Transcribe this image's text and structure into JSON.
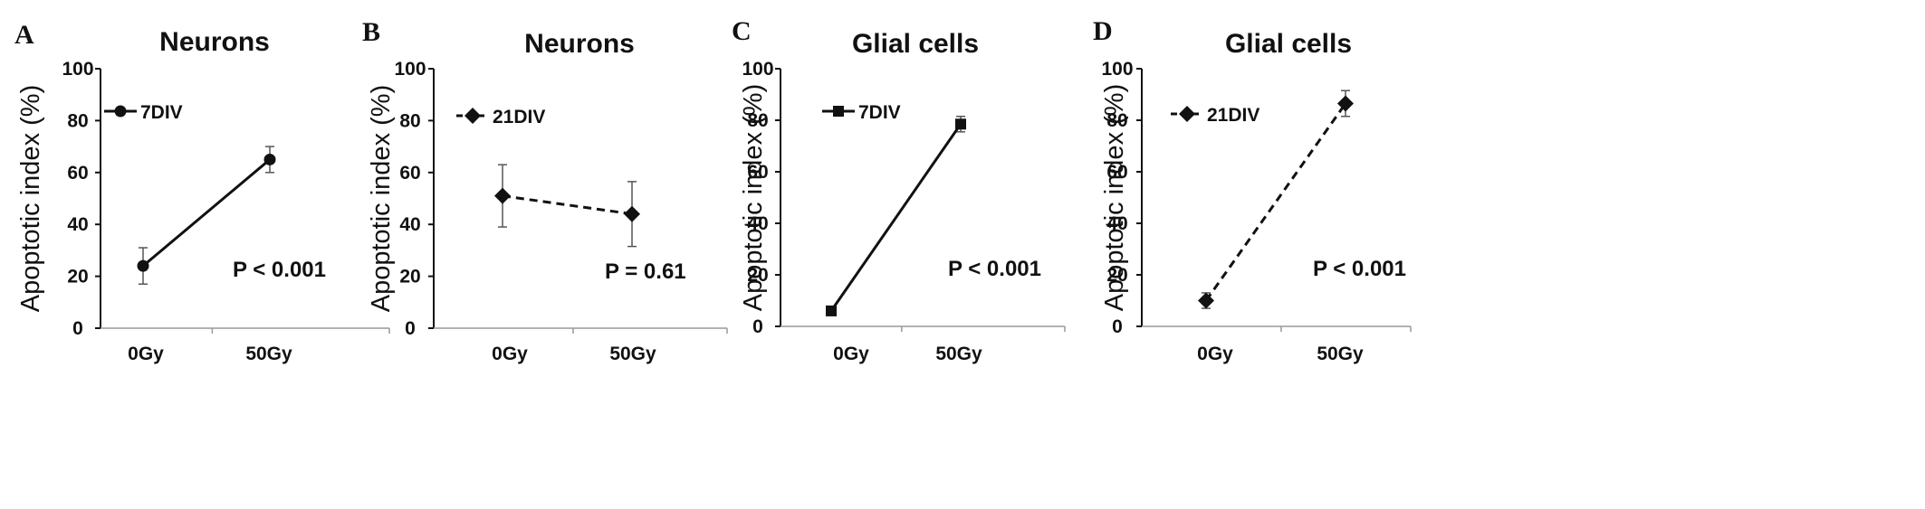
{
  "chart_data": [
    {
      "type": "line",
      "panel": "A",
      "title": "Neurons",
      "ylabel": "Apoptotic index (%)",
      "xlabel": "",
      "categories": [
        "0Gy",
        "50Gy"
      ],
      "ylim": [
        0,
        100
      ],
      "yticks": [
        "0",
        "20",
        "40",
        "60",
        "80",
        "100"
      ],
      "series": [
        {
          "name": "7DIV",
          "values": [
            24,
            65
          ],
          "errors": [
            7,
            5
          ],
          "marker": "circle",
          "dash": "solid"
        }
      ],
      "annotation": "P < 0.001",
      "legend_position": "top-left",
      "grid": false
    },
    {
      "type": "line",
      "panel": "B",
      "title": "Neurons",
      "ylabel": "Apoptotic index (%)",
      "xlabel": "",
      "categories": [
        "0Gy",
        "50Gy"
      ],
      "ylim": [
        0,
        100
      ],
      "yticks": [
        "0",
        "20",
        "40",
        "60",
        "80",
        "100"
      ],
      "series": [
        {
          "name": "21DIV",
          "values": [
            51,
            44
          ],
          "errors": [
            12,
            12.5
          ],
          "marker": "diamond",
          "dash": "dashed"
        }
      ],
      "annotation": "P = 0.61",
      "legend_position": "top-left",
      "grid": false
    },
    {
      "type": "line",
      "panel": "C",
      "title": "Glial cells",
      "ylabel": "Apoptotic index (%)",
      "xlabel": "",
      "categories": [
        "0Gy",
        "50Gy"
      ],
      "ylim": [
        0,
        100
      ],
      "yticks": [
        "0",
        "20",
        "40",
        "60",
        "80",
        "100"
      ],
      "series": [
        {
          "name": "7DIV",
          "values": [
            6,
            78.5
          ],
          "errors": [
            1,
            3
          ],
          "marker": "square",
          "dash": "solid"
        }
      ],
      "annotation": "P < 0.001",
      "legend_position": "top-left",
      "grid": false
    },
    {
      "type": "line",
      "panel": "D",
      "title": "Glial cells",
      "ylabel": "Apoptotic index (%)",
      "xlabel": "",
      "categories": [
        "0Gy",
        "50Gy"
      ],
      "ylim": [
        0,
        100
      ],
      "yticks": [
        "0",
        "20",
        "40",
        "60",
        "80",
        "100"
      ],
      "series": [
        {
          "name": "21DIV",
          "values": [
            10,
            86.5
          ],
          "errors": [
            3,
            5
          ],
          "marker": "diamond",
          "dash": "dashed"
        }
      ],
      "annotation": "P < 0.001",
      "legend_position": "top-left",
      "grid": false
    }
  ]
}
